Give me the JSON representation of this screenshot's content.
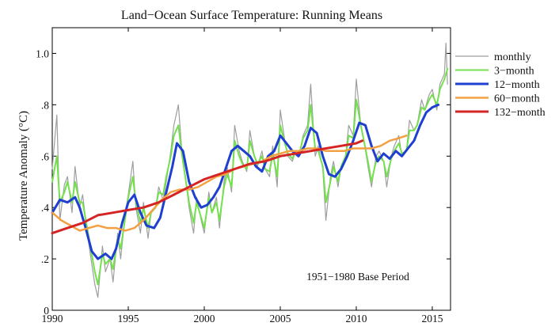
{
  "chart_data": {
    "type": "line",
    "title": "Land−Ocean Surface Temperature: Running Means",
    "xlabel": "",
    "ylabel": "Temperature Anomaly (°C)",
    "xlim": [
      1990,
      2016.2
    ],
    "ylim": [
      0,
      1.1
    ],
    "x_ticks": [
      1990,
      1995,
      2000,
      2005,
      2010,
      2015
    ],
    "x_tick_labels": [
      "1990",
      "1995",
      "2000",
      "2005",
      "2010",
      "2015"
    ],
    "y_ticks": [
      0,
      0.2,
      0.4,
      0.6,
      0.8,
      1.0
    ],
    "y_tick_labels": [
      "0",
      ".2",
      ".4",
      ".6",
      ".8",
      "1.0"
    ],
    "annotation": "1951−1980 Base Period",
    "legend_position": "right",
    "series": [
      {
        "name": "monthly",
        "color": "#9e9e9e",
        "width": 1.2,
        "x": [
          1990.0,
          1990.3,
          1990.5,
          1990.8,
          1991.0,
          1991.3,
          1991.5,
          1991.8,
          1992.0,
          1992.3,
          1992.5,
          1992.8,
          1993.0,
          1993.3,
          1993.5,
          1993.8,
          1994.0,
          1994.3,
          1994.5,
          1994.8,
          1995.0,
          1995.3,
          1995.5,
          1995.8,
          1996.0,
          1996.3,
          1996.5,
          1996.8,
          1997.0,
          1997.3,
          1997.5,
          1997.8,
          1998.0,
          1998.3,
          1998.5,
          1998.8,
          1999.0,
          1999.3,
          1999.5,
          1999.8,
          2000.0,
          2000.3,
          2000.5,
          2000.8,
          2001.0,
          2001.3,
          2001.5,
          2001.8,
          2002.0,
          2002.3,
          2002.5,
          2002.8,
          2003.0,
          2003.3,
          2003.5,
          2003.8,
          2004.0,
          2004.3,
          2004.5,
          2004.8,
          2005.0,
          2005.3,
          2005.5,
          2005.8,
          2006.0,
          2006.3,
          2006.5,
          2006.8,
          2007.0,
          2007.3,
          2007.5,
          2007.8,
          2008.0,
          2008.3,
          2008.5,
          2008.8,
          2009.0,
          2009.3,
          2009.5,
          2009.8,
          2010.0,
          2010.3,
          2010.5,
          2010.8,
          2011.0,
          2011.3,
          2011.5,
          2011.8,
          2012.0,
          2012.3,
          2012.5,
          2012.8,
          2013.0,
          2013.3,
          2013.5,
          2013.8,
          2014.0,
          2014.3,
          2014.5,
          2014.8,
          2015.0,
          2015.3,
          2015.5,
          2015.8,
          2015.9,
          2016.0
        ],
        "y": [
          0.55,
          0.76,
          0.35,
          0.49,
          0.52,
          0.38,
          0.56,
          0.4,
          0.45,
          0.3,
          0.22,
          0.1,
          0.05,
          0.25,
          0.15,
          0.2,
          0.11,
          0.3,
          0.2,
          0.38,
          0.45,
          0.58,
          0.4,
          0.3,
          0.42,
          0.28,
          0.38,
          0.4,
          0.48,
          0.43,
          0.5,
          0.62,
          0.72,
          0.8,
          0.64,
          0.5,
          0.4,
          0.3,
          0.44,
          0.35,
          0.3,
          0.46,
          0.38,
          0.44,
          0.32,
          0.5,
          0.56,
          0.46,
          0.72,
          0.62,
          0.58,
          0.54,
          0.7,
          0.6,
          0.56,
          0.62,
          0.55,
          0.52,
          0.64,
          0.48,
          0.78,
          0.66,
          0.6,
          0.58,
          0.62,
          0.62,
          0.68,
          0.72,
          0.88,
          0.6,
          0.64,
          0.55,
          0.35,
          0.52,
          0.58,
          0.48,
          0.56,
          0.6,
          0.72,
          0.68,
          0.9,
          0.72,
          0.66,
          0.55,
          0.48,
          0.6,
          0.62,
          0.58,
          0.48,
          0.6,
          0.64,
          0.68,
          0.6,
          0.62,
          0.74,
          0.7,
          0.72,
          0.82,
          0.78,
          0.84,
          0.86,
          0.78,
          0.88,
          0.92,
          1.04,
          0.88
        ]
      },
      {
        "name": "3−month",
        "color": "#74e04e",
        "width": 2,
        "x": [
          1990.0,
          1990.3,
          1990.5,
          1990.8,
          1991.0,
          1991.3,
          1991.5,
          1991.8,
          1992.0,
          1992.3,
          1992.5,
          1992.8,
          1993.0,
          1993.3,
          1993.5,
          1993.8,
          1994.0,
          1994.3,
          1994.5,
          1994.8,
          1995.0,
          1995.3,
          1995.5,
          1995.8,
          1996.0,
          1996.3,
          1996.5,
          1996.8,
          1997.0,
          1997.3,
          1997.5,
          1997.8,
          1998.0,
          1998.3,
          1998.5,
          1998.8,
          1999.0,
          1999.3,
          1999.5,
          1999.8,
          2000.0,
          2000.3,
          2000.5,
          2000.8,
          2001.0,
          2001.3,
          2001.5,
          2001.8,
          2002.0,
          2002.3,
          2002.5,
          2002.8,
          2003.0,
          2003.3,
          2003.5,
          2003.8,
          2004.0,
          2004.3,
          2004.5,
          2004.8,
          2005.0,
          2005.3,
          2005.5,
          2005.8,
          2006.0,
          2006.3,
          2006.5,
          2006.8,
          2007.0,
          2007.3,
          2007.5,
          2007.8,
          2008.0,
          2008.3,
          2008.5,
          2008.8,
          2009.0,
          2009.3,
          2009.5,
          2009.8,
          2010.0,
          2010.3,
          2010.5,
          2010.8,
          2011.0,
          2011.3,
          2011.5,
          2011.8,
          2012.0,
          2012.3,
          2012.5,
          2012.8,
          2013.0,
          2013.3,
          2013.5,
          2013.8,
          2014.0,
          2014.3,
          2014.5,
          2014.8,
          2015.0,
          2015.3,
          2015.5,
          2015.8,
          2016.0
        ],
        "y": [
          0.5,
          0.6,
          0.42,
          0.46,
          0.5,
          0.42,
          0.5,
          0.42,
          0.42,
          0.32,
          0.25,
          0.15,
          0.1,
          0.22,
          0.18,
          0.2,
          0.16,
          0.28,
          0.24,
          0.36,
          0.44,
          0.52,
          0.42,
          0.34,
          0.4,
          0.32,
          0.38,
          0.4,
          0.46,
          0.45,
          0.52,
          0.6,
          0.68,
          0.72,
          0.62,
          0.5,
          0.42,
          0.34,
          0.42,
          0.36,
          0.32,
          0.44,
          0.38,
          0.42,
          0.35,
          0.48,
          0.53,
          0.48,
          0.66,
          0.6,
          0.57,
          0.55,
          0.66,
          0.6,
          0.57,
          0.6,
          0.55,
          0.54,
          0.61,
          0.52,
          0.72,
          0.65,
          0.61,
          0.59,
          0.62,
          0.62,
          0.67,
          0.7,
          0.8,
          0.63,
          0.62,
          0.56,
          0.42,
          0.5,
          0.56,
          0.5,
          0.56,
          0.6,
          0.68,
          0.67,
          0.82,
          0.72,
          0.66,
          0.57,
          0.5,
          0.58,
          0.6,
          0.58,
          0.52,
          0.59,
          0.62,
          0.65,
          0.61,
          0.62,
          0.7,
          0.7,
          0.72,
          0.79,
          0.78,
          0.82,
          0.84,
          0.8,
          0.86,
          0.9,
          0.94
        ]
      },
      {
        "name": "12−month",
        "color": "#1e3fd0",
        "width": 3,
        "x": [
          1990.0,
          1990.5,
          1991.0,
          1991.5,
          1991.8,
          1992.2,
          1992.6,
          1993.0,
          1993.5,
          1993.9,
          1994.2,
          1994.6,
          1995.0,
          1995.4,
          1995.8,
          1996.2,
          1996.7,
          1997.1,
          1997.5,
          1997.9,
          1998.2,
          1998.6,
          1999.0,
          1999.4,
          1999.8,
          2000.2,
          2000.6,
          2001.0,
          2001.4,
          2001.8,
          2002.2,
          2002.6,
          2003.0,
          2003.4,
          2003.8,
          2004.2,
          2004.6,
          2005.0,
          2005.4,
          2005.8,
          2006.2,
          2006.6,
          2007.0,
          2007.4,
          2007.8,
          2008.2,
          2008.6,
          2009.0,
          2009.4,
          2009.8,
          2010.2,
          2010.6,
          2011.0,
          2011.4,
          2011.8,
          2012.2,
          2012.6,
          2013.0,
          2013.4,
          2013.8,
          2014.2,
          2014.6,
          2015.0,
          2015.4
        ],
        "y": [
          0.38,
          0.43,
          0.42,
          0.44,
          0.4,
          0.32,
          0.23,
          0.2,
          0.22,
          0.2,
          0.24,
          0.34,
          0.42,
          0.45,
          0.38,
          0.33,
          0.32,
          0.36,
          0.46,
          0.56,
          0.65,
          0.62,
          0.5,
          0.44,
          0.4,
          0.41,
          0.44,
          0.48,
          0.55,
          0.62,
          0.64,
          0.62,
          0.6,
          0.56,
          0.54,
          0.6,
          0.62,
          0.68,
          0.65,
          0.62,
          0.6,
          0.64,
          0.71,
          0.69,
          0.6,
          0.53,
          0.52,
          0.55,
          0.6,
          0.66,
          0.73,
          0.72,
          0.64,
          0.58,
          0.61,
          0.59,
          0.62,
          0.6,
          0.63,
          0.66,
          0.72,
          0.77,
          0.79,
          0.8
        ]
      },
      {
        "name": "60−month",
        "color": "#f3a042",
        "width": 2.5,
        "x": [
          1990.0,
          1990.6,
          1991.2,
          1991.8,
          1992.4,
          1993.0,
          1993.6,
          1994.2,
          1994.8,
          1995.4,
          1996.0,
          1996.6,
          1997.2,
          1997.8,
          1998.4,
          1999.0,
          1999.6,
          2000.2,
          2000.8,
          2001.4,
          2002.0,
          2002.6,
          2003.2,
          2003.8,
          2004.4,
          2005.0,
          2005.6,
          2006.2,
          2006.8,
          2007.4,
          2008.0,
          2008.6,
          2009.2,
          2009.8,
          2010.4,
          2011.0,
          2011.6,
          2012.2,
          2012.8,
          2013.3
        ],
        "y": [
          0.38,
          0.35,
          0.33,
          0.31,
          0.32,
          0.33,
          0.32,
          0.32,
          0.31,
          0.32,
          0.35,
          0.39,
          0.43,
          0.46,
          0.47,
          0.47,
          0.48,
          0.5,
          0.52,
          0.53,
          0.55,
          0.56,
          0.57,
          0.58,
          0.6,
          0.61,
          0.62,
          0.62,
          0.63,
          0.63,
          0.62,
          0.62,
          0.62,
          0.63,
          0.63,
          0.63,
          0.64,
          0.66,
          0.67,
          0.68
        ]
      },
      {
        "name": "132−month",
        "color": "#d42424",
        "width": 3,
        "x": [
          1990.0,
          1991.0,
          1992.0,
          1993.0,
          1994.0,
          1995.0,
          1996.0,
          1997.0,
          1998.0,
          1999.0,
          2000.0,
          2001.0,
          2002.0,
          2003.0,
          2004.0,
          2005.0,
          2006.0,
          2007.0,
          2008.0,
          2009.0,
          2010.0,
          2010.4
        ],
        "y": [
          0.3,
          0.32,
          0.34,
          0.37,
          0.38,
          0.39,
          0.4,
          0.42,
          0.45,
          0.48,
          0.51,
          0.53,
          0.55,
          0.57,
          0.58,
          0.6,
          0.61,
          0.62,
          0.63,
          0.64,
          0.65,
          0.66
        ]
      }
    ]
  }
}
